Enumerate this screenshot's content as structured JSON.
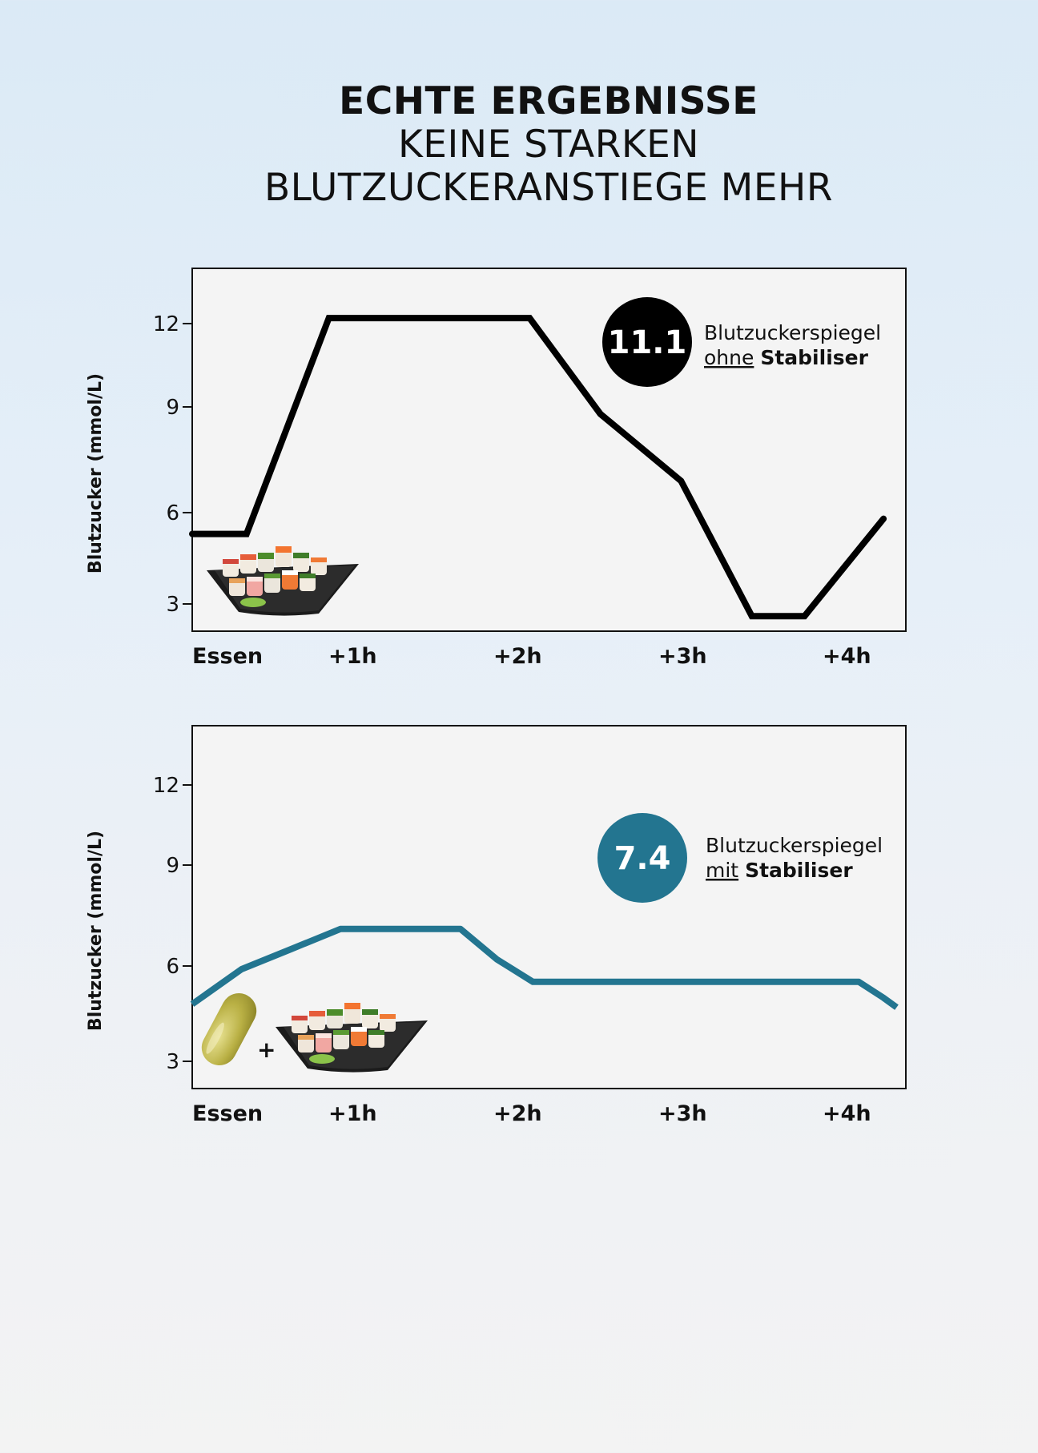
{
  "headline": {
    "line1": "ECHTE ERGEBNISSE",
    "line2": "KEINE STARKEN",
    "line3": "BLUTZUCKERANSTIEGE MEHR"
  },
  "colors": {
    "without": "#000000",
    "with": "#237590",
    "panel_bg": "#f4f4f4"
  },
  "chart_data": [
    {
      "type": "line",
      "ylabel": "Blutzucker (mmol/L)",
      "yticks": [
        3,
        6,
        9,
        12
      ],
      "ylim": [
        2.2,
        14
      ],
      "categories": [
        "Essen",
        "+1h",
        "+2h",
        "+3h",
        "+4h"
      ],
      "xlim": [
        0,
        4.3
      ],
      "series": [
        {
          "name": "Blutzuckerspiegel ohne Stabiliser",
          "color": "#000000",
          "x": [
            0,
            0.33,
            0.83,
            2.05,
            2.48,
            2.97,
            3.4,
            3.72,
            4.2
          ],
          "y": [
            5.3,
            5.3,
            12.2,
            12.2,
            8.8,
            6.9,
            2.6,
            2.6,
            5.8
          ]
        }
      ],
      "badge": {
        "value": "11.1",
        "label_line1": "Blutzuckerspiegel",
        "label_word": "ohne",
        "label_bold": "Stabiliser",
        "color": "#000000"
      },
      "illustration": "sushi-platter"
    },
    {
      "type": "line",
      "ylabel": "Blutzucker (mmol/L)",
      "yticks": [
        3,
        6,
        9,
        12
      ],
      "ylim": [
        2.2,
        14
      ],
      "categories": [
        "Essen",
        "+1h",
        "+2h",
        "+3h",
        "+4h"
      ],
      "xlim": [
        0,
        4.3
      ],
      "series": [
        {
          "name": "Blutzuckerspiegel mit Stabiliser",
          "color": "#237590",
          "x": [
            0,
            0.3,
            0.6,
            0.9,
            1.63,
            1.85,
            2.07,
            2.5,
            3,
            3.5,
            4.05,
            4.2,
            4.28
          ],
          "y": [
            4.8,
            5.9,
            6.5,
            7.1,
            7.1,
            6.2,
            5.5,
            5.5,
            5.5,
            5.5,
            5.5,
            5.0,
            4.7
          ]
        }
      ],
      "badge": {
        "value": "7.4",
        "label_line1": "Blutzuckerspiegel",
        "label_word": "mit",
        "label_bold": "Stabiliser",
        "color": "#237590"
      },
      "illustration_plus": "+",
      "illustration": "capsule-plus-sushi-platter"
    }
  ]
}
